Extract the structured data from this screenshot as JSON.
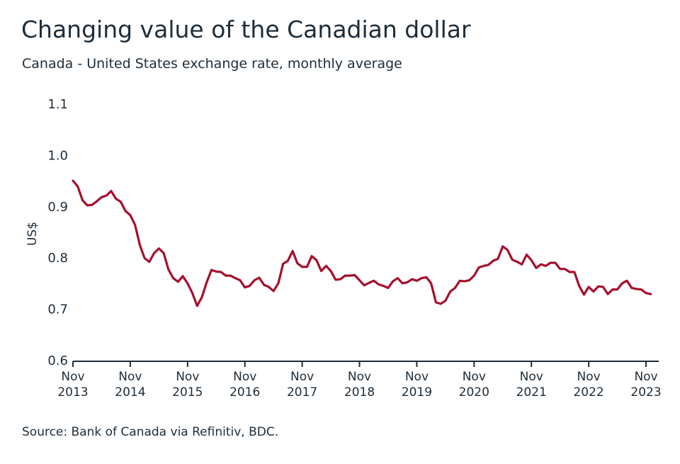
{
  "chart_data": {
    "type": "line",
    "title": "Changing value of the Canadian dollar",
    "subtitle": "Canada - United States exchange rate, monthly average",
    "y_label": "US$",
    "source": "Source: Bank of Canada via Refinitiv, BDC.",
    "categories": [
      "Nov\n2013",
      null,
      null,
      null,
      null,
      null,
      null,
      null,
      null,
      null,
      null,
      null,
      "Nov\n2014",
      null,
      null,
      null,
      null,
      null,
      null,
      null,
      null,
      null,
      null,
      null,
      "Nov\n2015",
      null,
      null,
      null,
      null,
      null,
      null,
      null,
      null,
      null,
      null,
      null,
      "Nov\n2016",
      null,
      null,
      null,
      null,
      null,
      null,
      null,
      null,
      null,
      null,
      null,
      "Nov\n2017",
      null,
      null,
      null,
      null,
      null,
      null,
      null,
      null,
      null,
      null,
      null,
      "Nov\n2018",
      null,
      null,
      null,
      null,
      null,
      null,
      null,
      null,
      null,
      null,
      null,
      "Nov\n2019",
      null,
      null,
      null,
      null,
      null,
      null,
      null,
      null,
      null,
      null,
      null,
      "Nov\n2020",
      null,
      null,
      null,
      null,
      null,
      null,
      null,
      null,
      null,
      null,
      null,
      "Nov\n2021",
      null,
      null,
      null,
      null,
      null,
      null,
      null,
      null,
      null,
      null,
      null,
      "Nov\n2022",
      null,
      null,
      null,
      null,
      null,
      null,
      null,
      null,
      null,
      null,
      null,
      "Nov\n2023",
      null
    ],
    "series": [
      {
        "color": "#a50f2d",
        "values": [
          0.952,
          0.941,
          0.914,
          0.904,
          0.905,
          0.912,
          0.92,
          0.923,
          0.932,
          0.917,
          0.911,
          0.893,
          0.885,
          0.866,
          0.827,
          0.801,
          0.794,
          0.811,
          0.82,
          0.811,
          0.779,
          0.762,
          0.755,
          0.766,
          0.752,
          0.733,
          0.708,
          0.725,
          0.754,
          0.778,
          0.775,
          0.774,
          0.767,
          0.767,
          0.762,
          0.758,
          0.744,
          0.747,
          0.758,
          0.763,
          0.749,
          0.745,
          0.737,
          0.752,
          0.79,
          0.796,
          0.815,
          0.791,
          0.784,
          0.784,
          0.805,
          0.797,
          0.776,
          0.786,
          0.776,
          0.759,
          0.76,
          0.767,
          0.767,
          0.768,
          0.758,
          0.748,
          0.753,
          0.757,
          0.75,
          0.747,
          0.743,
          0.756,
          0.762,
          0.752,
          0.754,
          0.76,
          0.757,
          0.762,
          0.764,
          0.752,
          0.715,
          0.712,
          0.718,
          0.736,
          0.743,
          0.757,
          0.756,
          0.758,
          0.767,
          0.783,
          0.786,
          0.788,
          0.796,
          0.8,
          0.824,
          0.817,
          0.798,
          0.794,
          0.789,
          0.808,
          0.797,
          0.782,
          0.789,
          0.786,
          0.792,
          0.792,
          0.78,
          0.78,
          0.774,
          0.774,
          0.747,
          0.73,
          0.745,
          0.736,
          0.746,
          0.745,
          0.731,
          0.74,
          0.74,
          0.752,
          0.757,
          0.743,
          0.741,
          0.74,
          0.733,
          0.731
        ]
      }
    ],
    "ylim": [
      0.6,
      1.1
    ],
    "yticks": [
      0.6,
      0.7,
      0.8,
      0.9,
      {
        "value": 1,
        "label": "1.0"
      },
      1.1
    ],
    "grid": false
  }
}
